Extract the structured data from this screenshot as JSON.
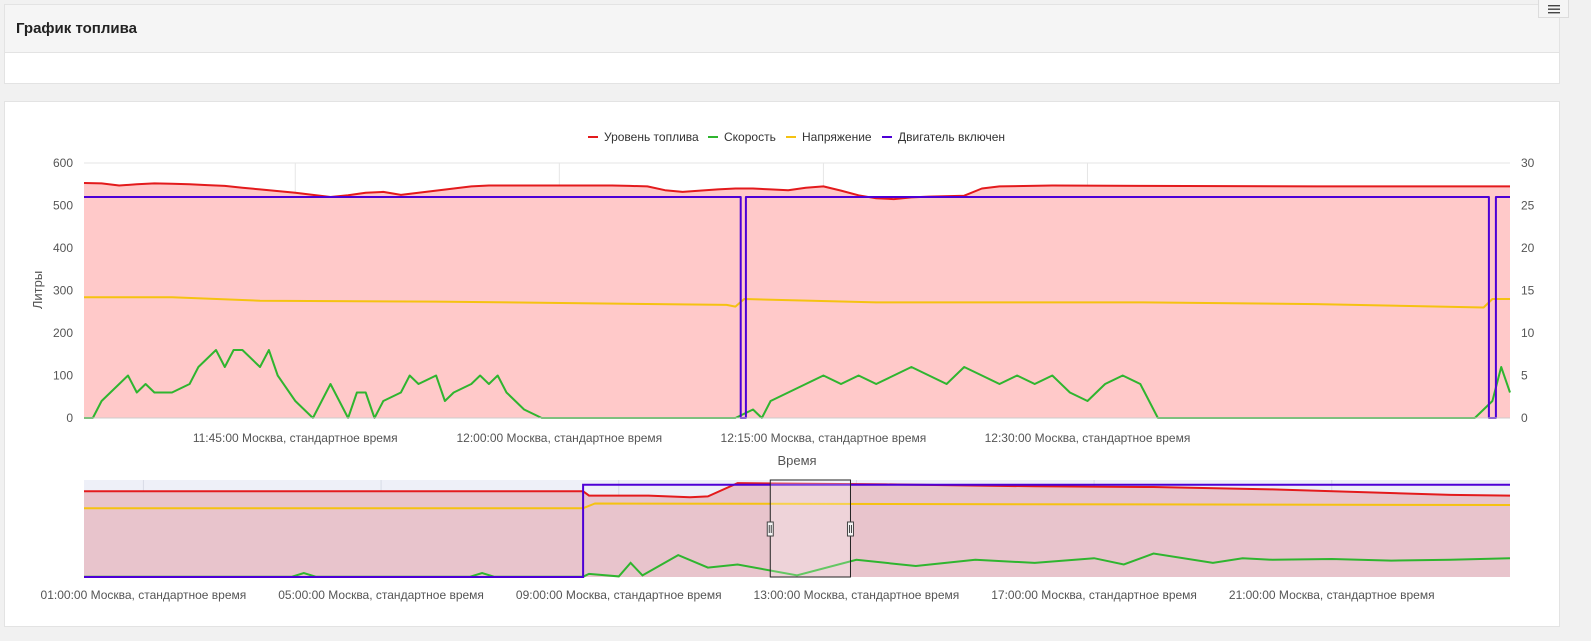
{
  "page": {
    "title": "График топлива"
  },
  "menu": {
    "icon": "hamburger-menu-icon"
  },
  "chart_data": {
    "type": "line",
    "legend_position": "top-center",
    "xlabel": "Время",
    "ylabel": "Литры",
    "y_left_range": [
      0,
      600
    ],
    "y_left_ticks": [
      "0",
      "100",
      "200",
      "300",
      "400",
      "500",
      "600"
    ],
    "y_right_range": [
      0,
      30
    ],
    "y_right_ticks": [
      "0",
      "5",
      "10",
      "15",
      "20",
      "25",
      "30"
    ],
    "x_range_main": [
      "11:33",
      "12:54"
    ],
    "x_ticks_main": [
      "11:45:00 Москва, стандартное время",
      "12:00:00 Москва, стандартное время",
      "12:15:00 Москва, стандартное время",
      "12:30:00 Москва, стандартное время"
    ],
    "grid": true,
    "series": [
      {
        "name": "Уровень топлива",
        "color": "#e31a1c",
        "fill": "#ffc9c9",
        "axis": "left",
        "points": [
          [
            0,
            553
          ],
          [
            1,
            552
          ],
          [
            2,
            547
          ],
          [
            3,
            550
          ],
          [
            4,
            552
          ],
          [
            5,
            551
          ],
          [
            6,
            550
          ],
          [
            7,
            548
          ],
          [
            8,
            546
          ],
          [
            9,
            542
          ],
          [
            10,
            538
          ],
          [
            12,
            530
          ],
          [
            13,
            525
          ],
          [
            14,
            520
          ],
          [
            15,
            524
          ],
          [
            16,
            530
          ],
          [
            17,
            532
          ],
          [
            18,
            525
          ],
          [
            19,
            530
          ],
          [
            20,
            535
          ],
          [
            21,
            540
          ],
          [
            22,
            545
          ],
          [
            23,
            547
          ],
          [
            25,
            547
          ],
          [
            30,
            547
          ],
          [
            31,
            546
          ],
          [
            32,
            545
          ],
          [
            33,
            536
          ],
          [
            34,
            532
          ],
          [
            35,
            535
          ],
          [
            36,
            538
          ],
          [
            37,
            540
          ],
          [
            38,
            540
          ],
          [
            39,
            538
          ],
          [
            40,
            536
          ],
          [
            41,
            542
          ],
          [
            42,
            545
          ],
          [
            43,
            535
          ],
          [
            44,
            524
          ],
          [
            45,
            517
          ],
          [
            46,
            515
          ],
          [
            47,
            519
          ],
          [
            48,
            521
          ],
          [
            50,
            523
          ],
          [
            51,
            540
          ],
          [
            52,
            545
          ],
          [
            55,
            547
          ],
          [
            60,
            546
          ],
          [
            70,
            545
          ],
          [
            74,
            545
          ],
          [
            81,
            545
          ]
        ]
      },
      {
        "name": "Скорость",
        "color": "#2fb52f",
        "axis": "right",
        "points": [
          [
            0,
            0
          ],
          [
            0.5,
            0
          ],
          [
            1,
            2
          ],
          [
            1.5,
            3
          ],
          [
            2,
            4
          ],
          [
            2.5,
            5
          ],
          [
            3,
            3
          ],
          [
            3.5,
            4
          ],
          [
            4,
            3
          ],
          [
            5,
            3
          ],
          [
            6,
            4
          ],
          [
            6.5,
            6
          ],
          [
            7,
            7
          ],
          [
            7.5,
            8
          ],
          [
            8,
            6
          ],
          [
            8.5,
            8
          ],
          [
            9,
            8
          ],
          [
            10,
            6
          ],
          [
            10.5,
            8
          ],
          [
            11,
            5
          ],
          [
            12,
            2
          ],
          [
            13,
            0
          ],
          [
            13.5,
            2
          ],
          [
            14,
            4
          ],
          [
            14.5,
            2
          ],
          [
            15,
            0
          ],
          [
            15.5,
            3
          ],
          [
            16,
            3
          ],
          [
            16.5,
            0
          ],
          [
            17,
            2
          ],
          [
            18,
            3
          ],
          [
            18.5,
            5
          ],
          [
            19,
            4
          ],
          [
            20,
            5
          ],
          [
            20.5,
            2
          ],
          [
            21,
            3
          ],
          [
            22,
            4
          ],
          [
            22.5,
            5
          ],
          [
            23,
            4
          ],
          [
            23.5,
            5
          ],
          [
            24,
            3
          ],
          [
            25,
            1
          ],
          [
            26,
            0
          ],
          [
            36,
            0
          ],
          [
            37,
            0
          ],
          [
            38,
            1
          ],
          [
            38.5,
            0
          ],
          [
            39,
            2
          ],
          [
            40,
            3
          ],
          [
            41,
            4
          ],
          [
            42,
            5
          ],
          [
            43,
            4
          ],
          [
            44,
            5
          ],
          [
            45,
            4
          ],
          [
            46,
            5
          ],
          [
            47,
            6
          ],
          [
            48,
            5
          ],
          [
            49,
            4
          ],
          [
            50,
            6
          ],
          [
            51,
            5
          ],
          [
            52,
            4
          ],
          [
            53,
            5
          ],
          [
            54,
            4
          ],
          [
            55,
            5
          ],
          [
            56,
            3
          ],
          [
            57,
            2
          ],
          [
            58,
            4
          ],
          [
            59,
            5
          ],
          [
            60,
            4
          ],
          [
            61,
            0
          ],
          [
            79,
            0
          ],
          [
            80,
            2
          ],
          [
            80.5,
            6
          ],
          [
            81,
            3
          ]
        ]
      },
      {
        "name": "Напряжение",
        "color": "#f5c211",
        "axis": "right",
        "points": [
          [
            0,
            14.2
          ],
          [
            5,
            14.2
          ],
          [
            10,
            13.8
          ],
          [
            20,
            13.7
          ],
          [
            36.5,
            13.3
          ],
          [
            37,
            13.1
          ],
          [
            37.5,
            14
          ],
          [
            45,
            13.6
          ],
          [
            60,
            13.6
          ],
          [
            70,
            13.4
          ],
          [
            79.5,
            13.0
          ],
          [
            80,
            14.0
          ],
          [
            81,
            14.0
          ]
        ]
      },
      {
        "name": "Двигатель включен",
        "color": "#4d00d6",
        "axis": "right",
        "points": [
          [
            0,
            26
          ],
          [
            37.3,
            26
          ],
          [
            37.3,
            0
          ],
          [
            37.6,
            0
          ],
          [
            37.6,
            26
          ],
          [
            79.8,
            26
          ],
          [
            79.8,
            0
          ],
          [
            80.2,
            0
          ],
          [
            80.2,
            26
          ],
          [
            81,
            26
          ]
        ]
      }
    ],
    "navigator": {
      "x_range": [
        "00:00",
        "24:00"
      ],
      "x_ticks": [
        "01:00:00 Москва, стандартное время",
        "05:00:00 Москва, стандартное время",
        "09:00:00 Москва, стандартное время",
        "13:00:00 Москва, стандартное время",
        "17:00:00 Москва, стандартное время",
        "21:00:00 Москва, стандартное время"
      ],
      "selection": [
        "11:33",
        "12:54"
      ],
      "series": [
        {
          "name": "Уровень топлива",
          "points": [
            [
              0,
              548
            ],
            [
              8.4,
              548
            ],
            [
              8.5,
              520
            ],
            [
              9.5,
              520
            ],
            [
              10.2,
              510
            ],
            [
              10.5,
              515
            ],
            [
              11,
              600
            ],
            [
              13.5,
              592
            ],
            [
              16,
              580
            ],
            [
              18,
              575
            ],
            [
              20,
              560
            ],
            [
              23,
              525
            ],
            [
              24,
              520
            ]
          ]
        },
        {
          "name": "Напряжение",
          "points": [
            [
              0,
              440
            ],
            [
              8.4,
              440
            ],
            [
              8.6,
              470
            ],
            [
              24,
              460
            ]
          ]
        },
        {
          "name": "Скорость",
          "points": [
            [
              0,
              2
            ],
            [
              3.5,
              2
            ],
            [
              3.7,
              25
            ],
            [
              3.9,
              2
            ],
            [
              6.5,
              2
            ],
            [
              6.7,
              25
            ],
            [
              6.9,
              2
            ],
            [
              8.4,
              2
            ],
            [
              8.5,
              20
            ],
            [
              9,
              4
            ],
            [
              9.2,
              90
            ],
            [
              9.4,
              10
            ],
            [
              10,
              140
            ],
            [
              10.5,
              60
            ],
            [
              11,
              80
            ],
            [
              12,
              10
            ],
            [
              13,
              110
            ],
            [
              14,
              70
            ],
            [
              15,
              110
            ],
            [
              16,
              90
            ],
            [
              17,
              120
            ],
            [
              17.5,
              80
            ],
            [
              18,
              150
            ],
            [
              19,
              90
            ],
            [
              19.5,
              120
            ],
            [
              20,
              110
            ],
            [
              21,
              115
            ],
            [
              22,
              105
            ],
            [
              23,
              110
            ],
            [
              24,
              120
            ]
          ]
        },
        {
          "name": "Двигатель включен",
          "points": [
            [
              0,
              0
            ],
            [
              8.4,
              0
            ],
            [
              8.4,
              590
            ],
            [
              24,
              590
            ]
          ]
        }
      ]
    }
  }
}
